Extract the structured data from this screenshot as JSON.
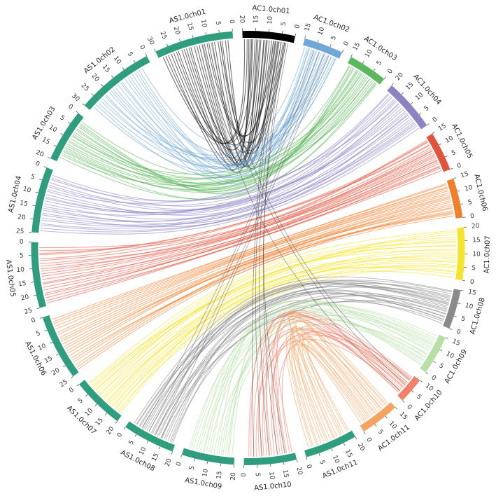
{
  "chart_data": {
    "type": "circos",
    "title": "",
    "chromosomes_clockwise": [
      {
        "id": "AC1.0ch01",
        "length": 20,
        "color": "#000000",
        "ticks": [
          "20",
          "15",
          "10",
          "5",
          "0"
        ]
      },
      {
        "id": "AC1.0ch02",
        "length": 15,
        "color": "#6fa8d6",
        "ticks": [
          "15",
          "10",
          "5",
          "0"
        ]
      },
      {
        "id": "AC1.0ch03",
        "length": 15,
        "color": "#5cb85c",
        "ticks": [
          "15",
          "10",
          "5",
          "0"
        ]
      },
      {
        "id": "AC1.0ch04",
        "length": 20,
        "color": "#8e82c2",
        "ticks": [
          "20",
          "15",
          "10",
          "5",
          "0"
        ]
      },
      {
        "id": "AC1.0ch05",
        "length": 15,
        "color": "#e0533c",
        "ticks": [
          "15",
          "10",
          "5",
          "0"
        ]
      },
      {
        "id": "AC1.0ch06",
        "length": 15,
        "color": "#f07f2c",
        "ticks": [
          "15",
          "10",
          "5",
          "0"
        ]
      },
      {
        "id": "AC1.0ch07",
        "length": 20,
        "color": "#f5e42b",
        "ticks": [
          "20",
          "15",
          "10",
          "5",
          "0"
        ]
      },
      {
        "id": "AC1.0ch08",
        "length": 15,
        "color": "#8a8a8a",
        "ticks": [
          "15",
          "10",
          "5",
          "0"
        ]
      },
      {
        "id": "AC1.0ch09",
        "length": 15,
        "color": "#b7e0a5",
        "ticks": [
          "15",
          "10",
          "5",
          "0"
        ]
      },
      {
        "id": "AC1.0ch10",
        "length": 10,
        "color": "#f2806a",
        "ticks": [
          "10",
          "5",
          "0"
        ]
      },
      {
        "id": "AC1.0ch11",
        "length": 15,
        "color": "#f4a460",
        "ticks": [
          "15",
          "10",
          "5",
          "0"
        ]
      },
      {
        "id": "AS1.0ch11",
        "length": 20,
        "color": "#2e9e7f",
        "ticks": [
          "20",
          "15",
          "10",
          "5",
          "0"
        ]
      },
      {
        "id": "AS1.0ch10",
        "length": 20,
        "color": "#2e9e7f",
        "ticks": [
          "20",
          "15",
          "10",
          "5",
          "0"
        ]
      },
      {
        "id": "AS1.0ch09",
        "length": 20,
        "color": "#2e9e7f",
        "ticks": [
          "20",
          "15",
          "10",
          "5",
          "0"
        ]
      },
      {
        "id": "AS1.0ch08",
        "length": 20,
        "color": "#2e9e7f",
        "ticks": [
          "20",
          "15",
          "10",
          "5",
          "0"
        ]
      },
      {
        "id": "AS1.0ch07",
        "length": 20,
        "color": "#2e9e7f",
        "ticks": [
          "20",
          "15",
          "10",
          "5",
          "0"
        ]
      },
      {
        "id": "AS1.0ch06",
        "length": 25,
        "color": "#2e9e7f",
        "ticks": [
          "25",
          "20",
          "15",
          "10",
          "5",
          "0"
        ]
      },
      {
        "id": "AS1.0ch05",
        "length": 25,
        "color": "#2e9e7f",
        "ticks": [
          "25",
          "20",
          "15",
          "10",
          "5",
          "0"
        ]
      },
      {
        "id": "AS1.0ch04",
        "length": 25,
        "color": "#2e9e7f",
        "ticks": [
          "25",
          "20",
          "15",
          "10",
          "5",
          "0"
        ]
      },
      {
        "id": "AS1.0ch03",
        "length": 20,
        "color": "#2e9e7f",
        "ticks": [
          "20",
          "15",
          "10",
          "5",
          "0"
        ]
      },
      {
        "id": "AS1.0ch02",
        "length": 30,
        "color": "#2e9e7f",
        "ticks": [
          "30",
          "25",
          "20",
          "15",
          "10",
          "5",
          "0"
        ]
      },
      {
        "id": "AS1.0ch01",
        "length": 30,
        "color": "#2e9e7f",
        "ticks": [
          "30",
          "25",
          "20",
          "15",
          "10",
          "5",
          "0"
        ]
      }
    ],
    "links": [
      {
        "from": "AC1.0ch01",
        "to": "AS1.0ch01",
        "color": "#000000",
        "from_range": [
          3,
          19
        ],
        "to_range": [
          2,
          28
        ],
        "count": 26,
        "cross": true
      },
      {
        "from": "AC1.0ch02",
        "to": "AS1.0ch02",
        "color": "#6fa8d6",
        "from_range": [
          1,
          14
        ],
        "to_range": [
          4,
          28
        ],
        "count": 22,
        "cross": false
      },
      {
        "from": "AC1.0ch03",
        "to": "AS1.0ch03",
        "color": "#5cb85c",
        "from_range": [
          1,
          14
        ],
        "to_range": [
          2,
          18
        ],
        "count": 22,
        "cross": false
      },
      {
        "from": "AC1.0ch04",
        "to": "AS1.0ch04",
        "color": "#8e82c2",
        "from_range": [
          1,
          19
        ],
        "to_range": [
          2,
          24
        ],
        "count": 24,
        "cross": false
      },
      {
        "from": "AC1.0ch05",
        "to": "AS1.0ch05",
        "color": "#e0533c",
        "from_range": [
          1,
          14
        ],
        "to_range": [
          2,
          24
        ],
        "count": 22,
        "cross": false
      },
      {
        "from": "AC1.0ch06",
        "to": "AS1.0ch06",
        "color": "#f07f2c",
        "from_range": [
          1,
          14
        ],
        "to_range": [
          2,
          24
        ],
        "count": 22,
        "cross": false
      },
      {
        "from": "AC1.0ch07",
        "to": "AS1.0ch07",
        "color": "#f5e42b",
        "from_range": [
          1,
          19
        ],
        "to_range": [
          2,
          19
        ],
        "count": 24,
        "cross": false
      },
      {
        "from": "AC1.0ch08",
        "to": "AS1.0ch08",
        "color": "#8a8a8a",
        "from_range": [
          1,
          14
        ],
        "to_range": [
          2,
          19
        ],
        "count": 24,
        "cross": false
      },
      {
        "from": "AC1.0ch09",
        "to": "AS1.0ch09",
        "color": "#b7e0a5",
        "from_range": [
          1,
          14
        ],
        "to_range": [
          2,
          19
        ],
        "count": 20,
        "cross": false
      },
      {
        "from": "AC1.0ch10",
        "to": "AS1.0ch10",
        "color": "#f2806a",
        "from_range": [
          1,
          9
        ],
        "to_range": [
          2,
          19
        ],
        "count": 18,
        "cross": true
      },
      {
        "from": "AC1.0ch11",
        "to": "AS1.0ch11",
        "color": "#f4a460",
        "from_range": [
          1,
          14
        ],
        "to_range": [
          2,
          19
        ],
        "count": 18,
        "cross": true
      },
      {
        "from": "AC1.0ch01",
        "to": "AS1.0ch10",
        "color": "#333333",
        "from_range": [
          2,
          8
        ],
        "to_range": [
          4,
          16
        ],
        "count": 5,
        "cross": false
      },
      {
        "from": "AC1.0ch02",
        "to": "AS1.0ch08",
        "color": "#555555",
        "from_range": [
          4,
          10
        ],
        "to_range": [
          6,
          14
        ],
        "count": 4,
        "cross": false
      },
      {
        "from": "AS1.0ch01",
        "to": "AC1.0ch10",
        "color": "#444444",
        "from_range": [
          5,
          12
        ],
        "to_range": [
          2,
          8
        ],
        "count": 3,
        "cross": false
      }
    ]
  }
}
